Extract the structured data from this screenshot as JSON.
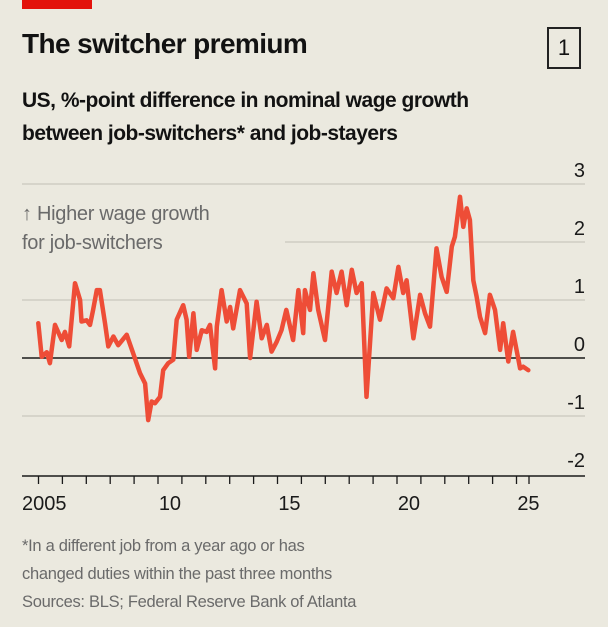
{
  "header": {
    "title": "The switcher premium",
    "chart_number": "1",
    "subtitle_line1": "US, %-point difference in nominal wage growth",
    "subtitle_line2": "between job-switchers* and job-stayers"
  },
  "annotation": {
    "line1": "↑ Higher wage growth",
    "line2": "for job-switchers"
  },
  "footnote": {
    "line1": "*In a different job from a year ago or has",
    "line2": "changed duties within the past three months",
    "sources": "Sources: BLS; Federal Reserve Bank of Atlanta"
  },
  "colors": {
    "line": "#ee4d37",
    "accent": "#e3120b",
    "grid": "#c9c7bd",
    "background": "#ebe9df"
  },
  "chart_data": {
    "type": "line",
    "title": "The switcher premium",
    "ylabel": "%-point difference",
    "ylim": [
      -2,
      3
    ],
    "yticks": [
      3,
      2,
      1,
      0,
      -1,
      -2
    ],
    "ytick_labels": [
      "3",
      "2",
      "1",
      "0",
      "-1",
      "-2"
    ],
    "xlim": [
      2005,
      2027.8
    ],
    "xtick_labels": [
      {
        "label": "2005",
        "year": 2005
      },
      {
        "label": "10",
        "year": 2010
      },
      {
        "label": "15",
        "year": 2015
      },
      {
        "label": "20",
        "year": 2020
      },
      {
        "label": "25",
        "year": 2025
      }
    ],
    "grid": true,
    "series": [
      {
        "name": "Job-switchers minus job-stayers",
        "x": [
          2004.93,
          2005.07,
          2005.28,
          2005.41,
          2005.62,
          2005.9,
          2006.03,
          2006.21,
          2006.45,
          2006.66,
          2006.72,
          2006.93,
          2007.07,
          2007.2,
          2007.35,
          2007.48,
          2007.69,
          2007.83,
          2008.04,
          2008.24,
          2008.59,
          2008.86,
          2009.14,
          2009.35,
          2009.48,
          2009.62,
          2009.76,
          2009.97,
          2010.1,
          2010.31,
          2010.52,
          2010.66,
          2010.93,
          2011.07,
          2011.18,
          2011.35,
          2011.49,
          2011.7,
          2011.9,
          2012.04,
          2012.25,
          2012.32,
          2012.52,
          2012.73,
          2012.87,
          2013.0,
          2013.28,
          2013.56,
          2013.7,
          2013.97,
          2014.18,
          2014.39,
          2014.59,
          2014.8,
          2015.0,
          2015.2,
          2015.48,
          2015.7,
          2015.9,
          2015.97,
          2016.18,
          2016.32,
          2016.52,
          2016.8,
          2017.08,
          2017.28,
          2017.49,
          2017.7,
          2017.91,
          2018.11,
          2018.32,
          2018.52,
          2018.8,
          2019.08,
          2019.35,
          2019.63,
          2019.84,
          2020.04,
          2020.18,
          2020.46,
          2020.74,
          2020.94,
          2021.15,
          2021.42,
          2021.63,
          2021.84,
          2022.05,
          2022.18,
          2022.39,
          2022.53,
          2022.67,
          2022.8,
          2022.94,
          2023.08,
          2023.22,
          2023.43,
          2023.63,
          2023.84,
          2024.05,
          2024.18,
          2024.39,
          2024.59,
          2024.88,
          2025.01,
          2025.22
        ],
        "y": [
          0.6,
          0.02,
          0.1,
          -0.09,
          0.57,
          0.31,
          0.45,
          0.2,
          1.29,
          1.0,
          0.63,
          0.65,
          0.57,
          0.83,
          1.17,
          1.17,
          0.6,
          0.2,
          0.37,
          0.22,
          0.4,
          0.08,
          -0.26,
          -0.44,
          -1.07,
          -0.75,
          -0.78,
          -0.67,
          -0.21,
          -0.09,
          -0.03,
          0.66,
          0.91,
          0.66,
          0.02,
          0.77,
          0.14,
          0.48,
          0.45,
          0.57,
          -0.18,
          0.54,
          1.17,
          0.63,
          0.88,
          0.51,
          1.17,
          0.94,
          0.0,
          0.97,
          0.34,
          0.57,
          0.11,
          0.28,
          0.48,
          0.83,
          0.31,
          1.17,
          0.43,
          1.17,
          0.83,
          1.46,
          0.83,
          0.31,
          1.49,
          1.12,
          1.49,
          0.91,
          1.52,
          1.12,
          1.29,
          -0.67,
          1.12,
          0.66,
          1.2,
          1.03,
          1.57,
          1.12,
          1.34,
          0.34,
          1.09,
          0.77,
          0.54,
          1.89,
          1.4,
          1.14,
          1.92,
          2.09,
          2.78,
          2.26,
          2.58,
          2.38,
          1.34,
          1.06,
          0.71,
          0.43,
          1.09,
          0.83,
          0.14,
          0.6,
          -0.06,
          0.45,
          -0.18,
          -0.15,
          -0.21
        ]
      }
    ]
  }
}
